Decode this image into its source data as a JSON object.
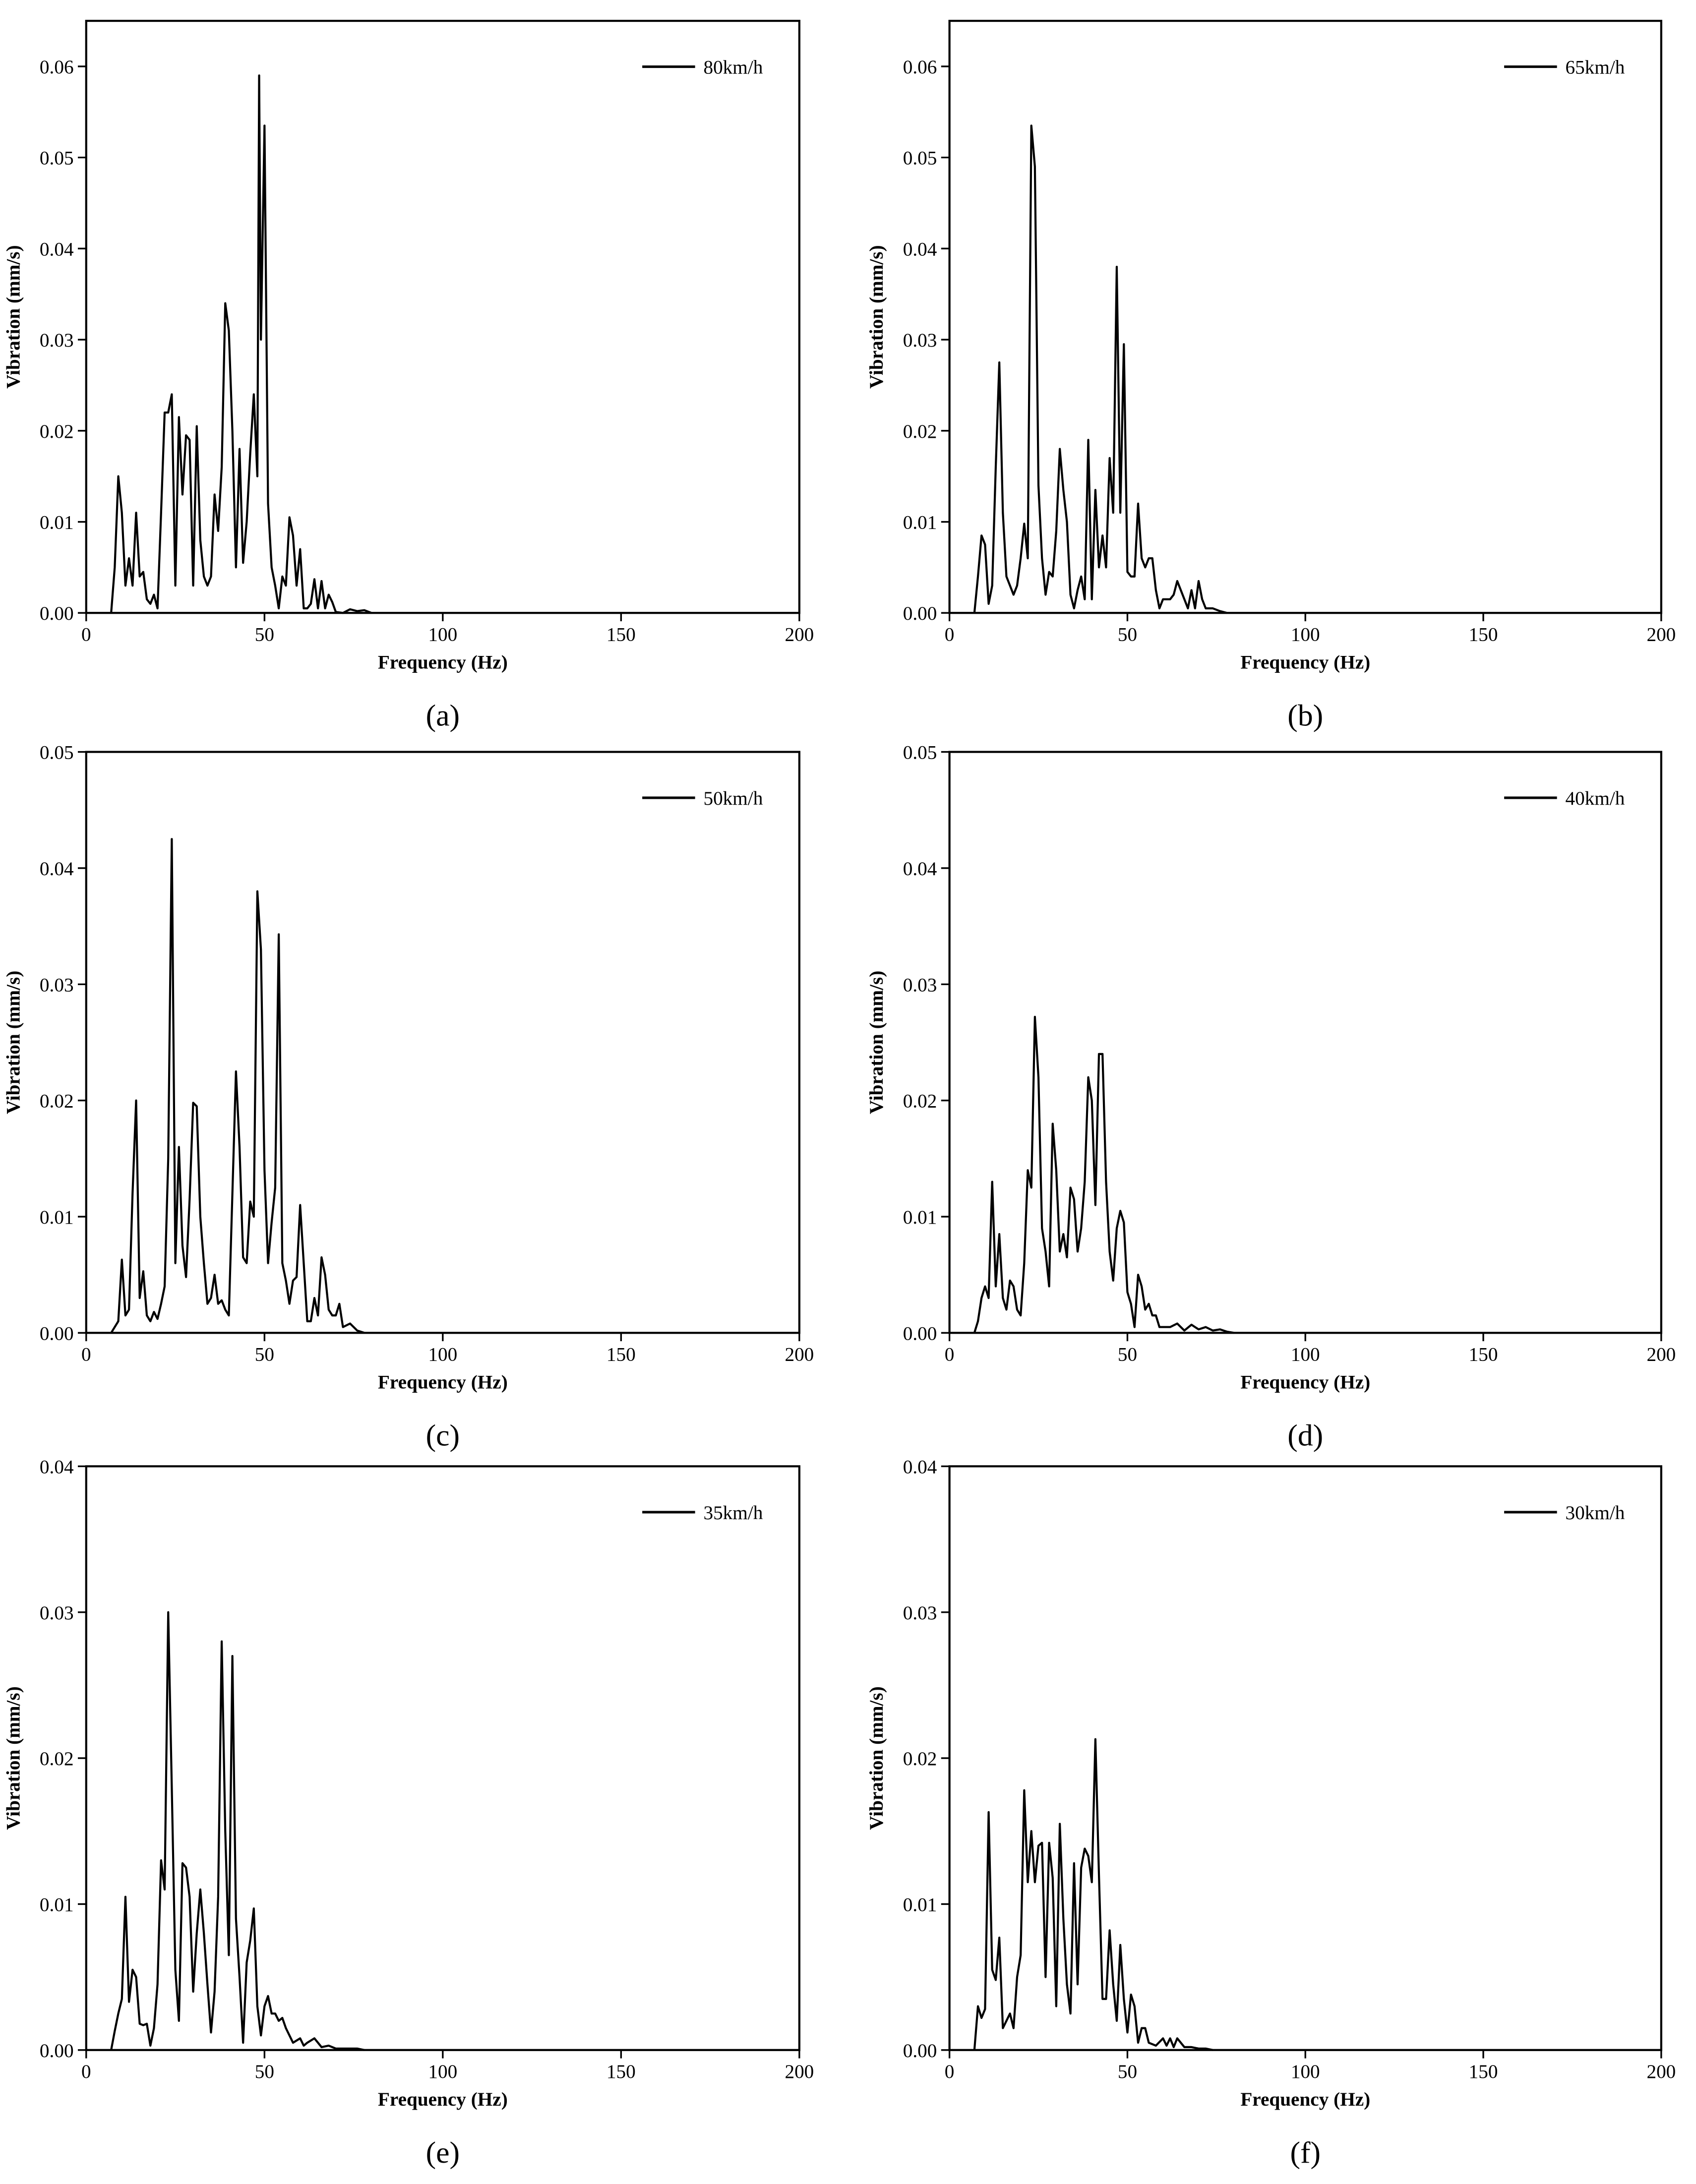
{
  "chart_data": [
    {
      "type": "line",
      "caption": "(a)",
      "x_label": "Frequency (Hz)",
      "y_label": "Vibration (mm/s)",
      "legend": "upper right",
      "xlim": [
        0,
        200
      ],
      "ylim": [
        0,
        0.065
      ],
      "xticks": [
        0,
        50,
        100,
        150,
        200
      ],
      "yticks": [
        {
          "value": 0,
          "label": "0.00"
        },
        {
          "value": 0.01,
          "label": "0.01"
        },
        {
          "value": 0.02,
          "label": "0.02"
        },
        {
          "value": 0.03,
          "label": "0.03"
        },
        {
          "value": 0.04,
          "label": "0.04"
        },
        {
          "value": 0.05,
          "label": "0.05"
        },
        {
          "value": 0.06,
          "label": "0.06"
        }
      ],
      "x": [
        7,
        8,
        9,
        10,
        11,
        12,
        13,
        14,
        15,
        16,
        17,
        18,
        19,
        20,
        21,
        22,
        23,
        24,
        25,
        26,
        27,
        28,
        29,
        30,
        31,
        32,
        33,
        34,
        35,
        36,
        37,
        38,
        39,
        40,
        41,
        42,
        43,
        44,
        45,
        46,
        47,
        48,
        48.5,
        49,
        50,
        51,
        52,
        53,
        54,
        55,
        56,
        57,
        58,
        59,
        60,
        61,
        62,
        63,
        64,
        65,
        66,
        67,
        68,
        69,
        70,
        72,
        74,
        76,
        78,
        80
      ],
      "series": [
        {
          "name": "80km/h",
          "color": "#000000",
          "values": [
            0,
            0.005,
            0.015,
            0.011,
            0.003,
            0.006,
            0.003,
            0.011,
            0.004,
            0.0045,
            0.0015,
            0.001,
            0.002,
            0.0005,
            0.011,
            0.022,
            0.022,
            0.024,
            0.003,
            0.0215,
            0.013,
            0.0195,
            0.019,
            0.003,
            0.0205,
            0.008,
            0.004,
            0.003,
            0.004,
            0.013,
            0.009,
            0.016,
            0.034,
            0.031,
            0.02,
            0.005,
            0.018,
            0.0055,
            0.01,
            0.0175,
            0.024,
            0.015,
            0.059,
            0.03,
            0.0535,
            0.012,
            0.005,
            0.003,
            0.0005,
            0.004,
            0.003,
            0.0105,
            0.0085,
            0.003,
            0.007,
            0.0005,
            0.0005,
            0.001,
            0.0037,
            0.0005,
            0.0035,
            0.0005,
            0.002,
            0.0012,
            0.0001,
            0,
            0.0004,
            0.0002,
            0.0003,
            0
          ]
        }
      ]
    },
    {
      "type": "line",
      "caption": "(b)",
      "x_label": "Frequency (Hz)",
      "y_label": "Vibration (mm/s)",
      "legend": "upper right",
      "xlim": [
        0,
        200
      ],
      "ylim": [
        0,
        0.065
      ],
      "xticks": [
        0,
        50,
        100,
        150,
        200
      ],
      "yticks": [
        {
          "value": 0,
          "label": "0.00"
        },
        {
          "value": 0.01,
          "label": "0.01"
        },
        {
          "value": 0.02,
          "label": "0.02"
        },
        {
          "value": 0.03,
          "label": "0.03"
        },
        {
          "value": 0.04,
          "label": "0.04"
        },
        {
          "value": 0.05,
          "label": "0.05"
        },
        {
          "value": 0.06,
          "label": "0.06"
        }
      ],
      "x": [
        7,
        8,
        9,
        10,
        11,
        12,
        13,
        14,
        15,
        16,
        17,
        18,
        19,
        20,
        21,
        22,
        23,
        24,
        25,
        26,
        27,
        28,
        29,
        30,
        31,
        32,
        33,
        34,
        35,
        36,
        37,
        38,
        39,
        40,
        41,
        42,
        43,
        44,
        45,
        46,
        47,
        48,
        49,
        50,
        51,
        52,
        53,
        54,
        55,
        56,
        57,
        58,
        59,
        60,
        61,
        62,
        63,
        64,
        65,
        66,
        67,
        68,
        69,
        70,
        71,
        72,
        74,
        76,
        78
      ],
      "series": [
        {
          "name": "65km/h",
          "color": "#000000",
          "values": [
            0,
            0.004,
            0.0085,
            0.0075,
            0.001,
            0.003,
            0.016,
            0.0275,
            0.011,
            0.004,
            0.003,
            0.002,
            0.003,
            0.006,
            0.0098,
            0.006,
            0.0535,
            0.049,
            0.014,
            0.006,
            0.002,
            0.0045,
            0.004,
            0.009,
            0.018,
            0.0135,
            0.01,
            0.002,
            0.0005,
            0.0025,
            0.004,
            0.0015,
            0.019,
            0.0015,
            0.0135,
            0.005,
            0.0085,
            0.005,
            0.017,
            0.011,
            0.038,
            0.011,
            0.0295,
            0.0045,
            0.004,
            0.004,
            0.012,
            0.006,
            0.005,
            0.006,
            0.006,
            0.0025,
            0.0005,
            0.0015,
            0.0015,
            0.0015,
            0.002,
            0.0035,
            0.0025,
            0.0015,
            0.0005,
            0.0025,
            0.0005,
            0.0035,
            0.0015,
            0.0005,
            0.0005,
            0.0002,
            0
          ]
        }
      ]
    },
    {
      "type": "line",
      "caption": "(c)",
      "x_label": "Frequency (Hz)",
      "y_label": "Vibration (mm/s)",
      "legend": "upper right",
      "xlim": [
        0,
        200
      ],
      "ylim": [
        0,
        0.05
      ],
      "xticks": [
        0,
        50,
        100,
        150,
        200
      ],
      "yticks": [
        {
          "value": 0,
          "label": "0.00"
        },
        {
          "value": 0.01,
          "label": "0.01"
        },
        {
          "value": 0.02,
          "label": "0.02"
        },
        {
          "value": 0.03,
          "label": "0.03"
        },
        {
          "value": 0.04,
          "label": "0.04"
        },
        {
          "value": 0.05,
          "label": "0.05"
        }
      ],
      "x": [
        7,
        8,
        9,
        10,
        11,
        12,
        13,
        14,
        15,
        16,
        17,
        18,
        19,
        20,
        21,
        22,
        23,
        24,
        25,
        26,
        27,
        28,
        29,
        30,
        31,
        32,
        33,
        34,
        35,
        36,
        37,
        38,
        39,
        40,
        42,
        43,
        44,
        45,
        46,
        47,
        48,
        49,
        50,
        51,
        52,
        53,
        54,
        55,
        56,
        57,
        58,
        59,
        60,
        61,
        62,
        63,
        64,
        65,
        66,
        67,
        68,
        69,
        70,
        71,
        72,
        74,
        76,
        78
      ],
      "series": [
        {
          "name": "50km/h",
          "color": "#000000",
          "values": [
            0,
            0.0005,
            0.001,
            0.0063,
            0.0015,
            0.002,
            0.012,
            0.02,
            0.003,
            0.0053,
            0.0015,
            0.001,
            0.0018,
            0.0012,
            0.0025,
            0.004,
            0.015,
            0.0425,
            0.006,
            0.016,
            0.0075,
            0.0048,
            0.0115,
            0.0198,
            0.0195,
            0.01,
            0.006,
            0.0025,
            0.003,
            0.005,
            0.0025,
            0.0028,
            0.002,
            0.0015,
            0.0225,
            0.016,
            0.0065,
            0.006,
            0.0113,
            0.01,
            0.038,
            0.033,
            0.014,
            0.006,
            0.0095,
            0.0125,
            0.0343,
            0.006,
            0.0045,
            0.0025,
            0.0045,
            0.0048,
            0.011,
            0.006,
            0.001,
            0.001,
            0.003,
            0.0015,
            0.0065,
            0.005,
            0.002,
            0.0015,
            0.0015,
            0.0025,
            0.0005,
            0.0008,
            0.0002,
            0
          ]
        }
      ]
    },
    {
      "type": "line",
      "caption": "(d)",
      "x_label": "Frequency (Hz)",
      "y_label": "Vibration (mm/s)",
      "legend": "upper right",
      "xlim": [
        0,
        200
      ],
      "ylim": [
        0,
        0.05
      ],
      "xticks": [
        0,
        50,
        100,
        150,
        200
      ],
      "yticks": [
        {
          "value": 0,
          "label": "0.00"
        },
        {
          "value": 0.01,
          "label": "0.01"
        },
        {
          "value": 0.02,
          "label": "0.02"
        },
        {
          "value": 0.03,
          "label": "0.03"
        },
        {
          "value": 0.04,
          "label": "0.04"
        },
        {
          "value": 0.05,
          "label": "0.05"
        }
      ],
      "x": [
        7,
        8,
        9,
        10,
        11,
        12,
        13,
        14,
        15,
        16,
        17,
        18,
        19,
        20,
        21,
        22,
        23,
        24,
        25,
        26,
        27,
        28,
        29,
        30,
        31,
        32,
        33,
        34,
        35,
        36,
        37,
        38,
        39,
        40,
        41,
        42,
        43,
        44,
        45,
        46,
        47,
        48,
        49,
        50,
        51,
        52,
        53,
        54,
        55,
        56,
        57,
        58,
        59,
        60,
        62,
        64,
        66,
        68,
        70,
        72,
        74,
        76,
        78,
        80
      ],
      "series": [
        {
          "name": "40km/h",
          "color": "#000000",
          "values": [
            0,
            0.001,
            0.003,
            0.004,
            0.003,
            0.013,
            0.004,
            0.0085,
            0.003,
            0.002,
            0.0045,
            0.004,
            0.002,
            0.0015,
            0.006,
            0.014,
            0.0125,
            0.0272,
            0.022,
            0.009,
            0.007,
            0.004,
            0.018,
            0.014,
            0.007,
            0.0085,
            0.0065,
            0.0125,
            0.0115,
            0.007,
            0.009,
            0.013,
            0.022,
            0.02,
            0.011,
            0.024,
            0.024,
            0.013,
            0.007,
            0.0045,
            0.009,
            0.0105,
            0.0095,
            0.0035,
            0.0025,
            0.0005,
            0.005,
            0.004,
            0.002,
            0.0025,
            0.0015,
            0.0015,
            0.0005,
            0.0005,
            0.0005,
            0.0008,
            0.0002,
            0.0007,
            0.0003,
            0.0005,
            0.0002,
            0.0003,
            0.0001,
            0
          ]
        }
      ]
    },
    {
      "type": "line",
      "caption": "(e)",
      "x_label": "Frequency (Hz)",
      "y_label": "Vibration (mm/s)",
      "legend": "upper right",
      "xlim": [
        0,
        200
      ],
      "ylim": [
        0,
        0.04
      ],
      "xticks": [
        0,
        50,
        100,
        150,
        200
      ],
      "yticks": [
        {
          "value": 0,
          "label": "0.00"
        },
        {
          "value": 0.01,
          "label": "0.01"
        },
        {
          "value": 0.02,
          "label": "0.02"
        },
        {
          "value": 0.03,
          "label": "0.03"
        },
        {
          "value": 0.04,
          "label": "0.04"
        }
      ],
      "x": [
        7,
        8,
        9,
        10,
        11,
        12,
        13,
        14,
        15,
        16,
        17,
        18,
        19,
        20,
        21,
        22,
        23,
        24,
        25,
        26,
        27,
        28,
        29,
        30,
        31,
        32,
        33,
        34,
        35,
        36,
        37,
        38,
        39,
        40,
        41,
        42,
        43,
        44,
        45,
        46,
        47,
        48,
        49,
        50,
        51,
        52,
        53,
        54,
        55,
        56,
        57,
        58,
        60,
        61,
        62,
        64,
        66,
        68,
        70,
        72,
        76,
        78
      ],
      "series": [
        {
          "name": "35km/h",
          "color": "#000000",
          "values": [
            0,
            0.0013,
            0.0025,
            0.0035,
            0.0105,
            0.0033,
            0.0055,
            0.005,
            0.0018,
            0.0017,
            0.0018,
            0.0003,
            0.0015,
            0.0045,
            0.013,
            0.011,
            0.03,
            0.018,
            0.0055,
            0.002,
            0.0128,
            0.0125,
            0.0105,
            0.004,
            0.008,
            0.011,
            0.008,
            0.0045,
            0.0012,
            0.004,
            0.0105,
            0.028,
            0.015,
            0.0065,
            0.027,
            0.009,
            0.005,
            0.0005,
            0.006,
            0.0075,
            0.0097,
            0.003,
            0.001,
            0.003,
            0.0037,
            0.0025,
            0.0025,
            0.002,
            0.0022,
            0.0015,
            0.001,
            0.0005,
            0.0008,
            0.0003,
            0.0005,
            0.0008,
            0.0002,
            0.0003,
            0.0001,
            0.0001,
            0.0001,
            0
          ]
        }
      ]
    },
    {
      "type": "line",
      "caption": "(f)",
      "x_label": "Frequency (Hz)",
      "y_label": "Vibration (mm/s)",
      "legend": "upper right",
      "xlim": [
        0,
        200
      ],
      "ylim": [
        0,
        0.04
      ],
      "xticks": [
        0,
        50,
        100,
        150,
        200
      ],
      "yticks": [
        {
          "value": 0,
          "label": "0.00"
        },
        {
          "value": 0.01,
          "label": "0.01"
        },
        {
          "value": 0.02,
          "label": "0.02"
        },
        {
          "value": 0.03,
          "label": "0.03"
        },
        {
          "value": 0.04,
          "label": "0.04"
        }
      ],
      "x": [
        7,
        8,
        9,
        10,
        11,
        12,
        13,
        14,
        15,
        16,
        17,
        18,
        19,
        20,
        21,
        22,
        23,
        24,
        25,
        26,
        27,
        28,
        29,
        30,
        31,
        32,
        33,
        34,
        35,
        36,
        37,
        38,
        39,
        40,
        41,
        42,
        43,
        44,
        45,
        46,
        47,
        48,
        49,
        50,
        51,
        52,
        53,
        54,
        55,
        56,
        58,
        60,
        61,
        62,
        63,
        64,
        66,
        68,
        70,
        72,
        74
      ],
      "series": [
        {
          "name": "30km/h",
          "color": "#000000",
          "values": [
            0,
            0.003,
            0.0022,
            0.0028,
            0.0163,
            0.0055,
            0.0048,
            0.0077,
            0.0015,
            0.002,
            0.0025,
            0.0015,
            0.005,
            0.0065,
            0.0178,
            0.0115,
            0.015,
            0.0115,
            0.014,
            0.0142,
            0.005,
            0.0142,
            0.0118,
            0.003,
            0.0155,
            0.009,
            0.0045,
            0.0025,
            0.0128,
            0.0045,
            0.0125,
            0.0138,
            0.0133,
            0.0115,
            0.0213,
            0.012,
            0.0035,
            0.0035,
            0.0082,
            0.0045,
            0.002,
            0.0072,
            0.0035,
            0.0012,
            0.0038,
            0.003,
            0.0005,
            0.0015,
            0.0015,
            0.0005,
            0.0003,
            0.0008,
            0.0003,
            0.0008,
            0.0002,
            0.0008,
            0.0002,
            0.0002,
            0.0001,
            0.0001,
            0
          ]
        }
      ]
    }
  ]
}
